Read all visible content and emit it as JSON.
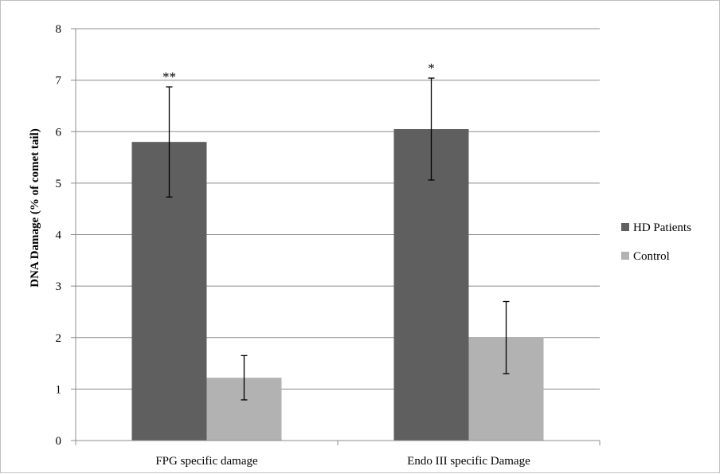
{
  "chart_data": {
    "type": "bar",
    "title": "",
    "xlabel": "",
    "ylabel": "DNA Damage (% of comet tail)",
    "ylim": [
      0,
      8
    ],
    "yticks": [
      0,
      1,
      2,
      3,
      4,
      5,
      6,
      7,
      8
    ],
    "grid": true,
    "legend_position": "right",
    "categories": [
      "FPG specific damage",
      "Endo III specific Damage"
    ],
    "series": [
      {
        "name": "HD Patients",
        "color": "#5f5f5f",
        "values": [
          5.8,
          6.05
        ],
        "errors": [
          1.07,
          0.99
        ],
        "annotations": [
          "**",
          "*"
        ]
      },
      {
        "name": "Control",
        "color": "#b2b2b2",
        "values": [
          1.22,
          2.0
        ],
        "errors": [
          0.43,
          0.7
        ],
        "annotations": [
          "",
          ""
        ]
      }
    ]
  }
}
